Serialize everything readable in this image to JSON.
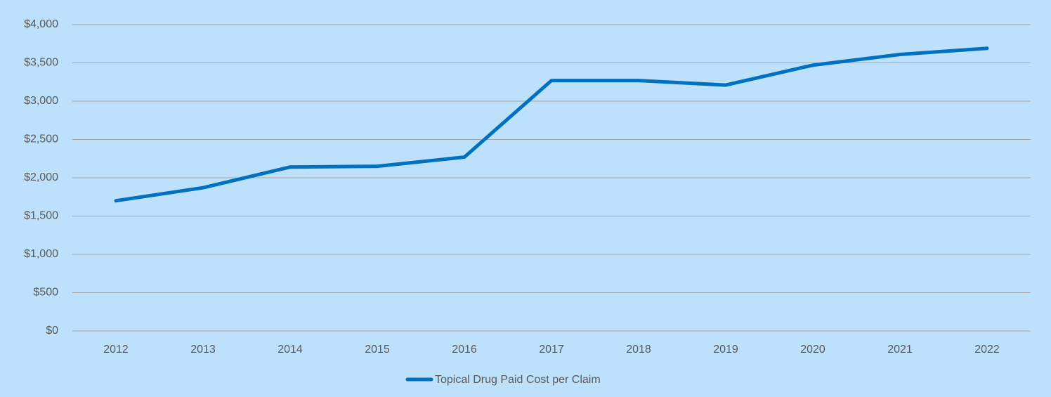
{
  "chart_data": {
    "type": "line",
    "categories": [
      "2012",
      "2013",
      "2014",
      "2015",
      "2016",
      "2017",
      "2018",
      "2019",
      "2020",
      "2021",
      "2022"
    ],
    "series": [
      {
        "name": "Topical Drug Paid Cost per Claim",
        "color": "#0070c0",
        "values": [
          1700,
          1870,
          2140,
          2150,
          2270,
          3270,
          3270,
          3210,
          3470,
          3610,
          3690
        ]
      }
    ],
    "ylim": [
      0,
      4000
    ],
    "yticks": [
      {
        "value": 0,
        "label": "$0"
      },
      {
        "value": 500,
        "label": "$500"
      },
      {
        "value": 1000,
        "label": "$1,000"
      },
      {
        "value": 1500,
        "label": "$1,500"
      },
      {
        "value": 2000,
        "label": "$2,000"
      },
      {
        "value": 2500,
        "label": "$2,500"
      },
      {
        "value": 3000,
        "label": "$3,000"
      },
      {
        "value": 3500,
        "label": "$3,500"
      },
      {
        "value": 4000,
        "label": "$4,000"
      }
    ],
    "grid": true,
    "legend": "bottom",
    "background": "#bde0fb"
  }
}
